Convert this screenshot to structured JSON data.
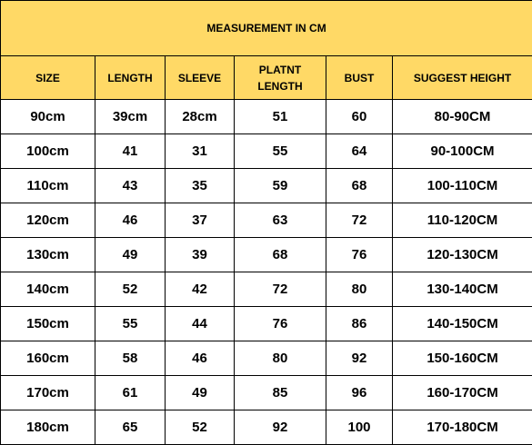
{
  "title": "MEASUREMENT IN CM",
  "columns": [
    "SIZE",
    "LENGTH",
    "SLEEVE",
    "PLATNT\nLENGTH",
    "BUST",
    "SUGGEST HEIGHT"
  ],
  "rows": [
    [
      "90cm",
      "39cm",
      "28cm",
      "51",
      "60",
      "80-90CM"
    ],
    [
      "100cm",
      "41",
      "31",
      "55",
      "64",
      "90-100CM"
    ],
    [
      "110cm",
      "43",
      "35",
      "59",
      "68",
      "100-110CM"
    ],
    [
      "120cm",
      "46",
      "37",
      "63",
      "72",
      "110-120CM"
    ],
    [
      "130cm",
      "49",
      "39",
      "68",
      "76",
      "120-130CM"
    ],
    [
      "140cm",
      "52",
      "42",
      "72",
      "80",
      "130-140CM"
    ],
    [
      "150cm",
      "55",
      "44",
      "76",
      "86",
      "140-150CM"
    ],
    [
      "160cm",
      "58",
      "46",
      "80",
      "92",
      "150-160CM"
    ],
    [
      "170cm",
      "61",
      "49",
      "85",
      "96",
      "160-170CM"
    ],
    [
      "180cm",
      "65",
      "52",
      "92",
      "100",
      "170-180CM"
    ]
  ],
  "colors": {
    "header_fill": "#ffd966",
    "border": "#000000"
  }
}
